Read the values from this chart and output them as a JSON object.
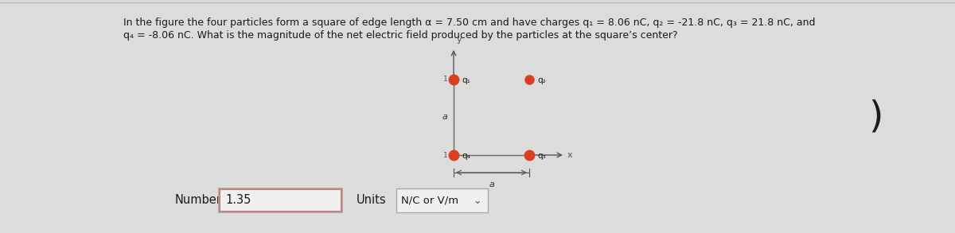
{
  "bg_color": "#dcdcdc",
  "text_color": "#1a1a1a",
  "title_line1": "In the figure the four particles form a square of edge length α = 7.50 cm and have charges q₁ = 8.06 nC, q₂ = -21.8 nC, q₃ = 21.8 nC, and",
  "title_line2": "q₄ = -8.06 nC. What is the magnitude of the net electric field produced by the particles at the square’s center?",
  "number_label": "Number",
  "number_value": "1.35",
  "units_label": "Units",
  "units_value": "N/C or V/m",
  "dot_color": "#d94020",
  "line_color": "#666666",
  "axis_color": "#555555",
  "label_color": "#333333",
  "q1_label": "q₁",
  "q2_label": "q₂",
  "q3_label": "q₃",
  "q4_label": "q₄",
  "a_label": "a",
  "fig_width": 12.0,
  "fig_height": 2.93,
  "title_fontsize": 9.0,
  "label_fontsize": 7.5,
  "number_fontsize": 10.5,
  "units_fontsize": 10.5
}
